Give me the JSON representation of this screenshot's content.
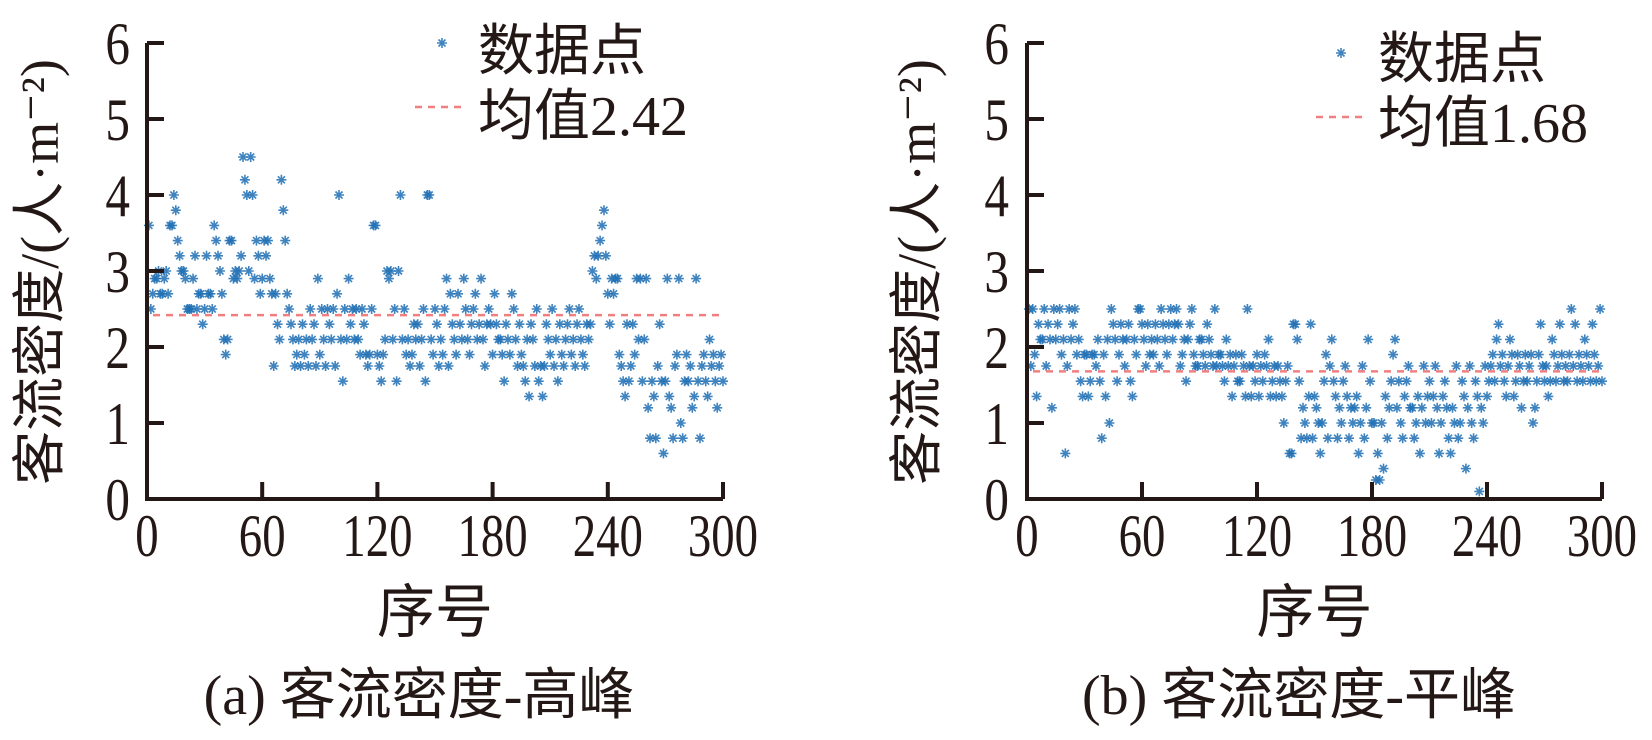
{
  "chart_data": [
    {
      "type": "scatter",
      "caption": "(a) 客流密度-高峰",
      "xlabel": "序号",
      "ylabel": "客流密度/(人·m⁻²)",
      "xlim": [
        0,
        300
      ],
      "ylim": [
        0,
        6
      ],
      "xticks": [
        "0",
        "60",
        "120",
        "180",
        "240",
        "300"
      ],
      "yticks": [
        "0",
        "1",
        "2",
        "3",
        "4",
        "5",
        "6"
      ],
      "legend": {
        "placement": "top-right",
        "points_label": "数据点",
        "mean_label": "均值2.42"
      },
      "mean": 2.42,
      "marker_color": "#1f6fb4",
      "mean_line_color": "#f08080",
      "y_rows": [
        [
          3.6,
          2.5,
          2.7,
          2.9,
          2.9,
          3.0,
          2.7,
          2.7,
          2.9,
          3.0
        ],
        [
          2.7,
          3.6,
          3.6,
          4.0,
          3.8,
          3.4,
          3.2,
          3.0,
          3.0,
          2.9
        ],
        [
          2.5,
          2.5,
          2.5,
          2.9,
          3.2,
          2.5,
          2.7,
          2.7,
          2.3,
          2.5
        ],
        [
          3.2,
          2.7,
          2.7,
          2.5,
          3.6,
          3.4,
          3.2,
          3.0,
          2.7,
          2.1
        ],
        [
          1.9,
          2.1,
          3.4,
          3.4,
          2.9,
          3.0,
          2.9,
          3.0,
          3.2,
          4.5
        ],
        [
          4.2,
          4.0,
          3.0,
          4.5,
          4.0,
          2.9,
          3.4,
          3.2,
          2.7,
          2.9
        ],
        [
          3.4,
          3.2,
          3.4,
          2.9,
          2.7,
          1.75,
          2.7,
          2.3,
          2.1,
          4.2
        ],
        [
          3.8,
          3.4,
          2.7,
          2.5,
          2.3,
          2.1,
          1.75,
          1.9,
          2.1,
          1.75
        ],
        [
          2.3,
          1.9,
          2.1,
          1.75,
          2.5,
          2.1,
          2.3,
          1.75,
          2.9,
          1.9
        ],
        [
          2.5,
          2.1,
          1.75,
          2.5,
          2.3,
          2.1,
          2.5,
          1.75,
          2.7,
          4.0
        ],
        [
          2.1,
          1.55,
          2.5,
          2.1,
          2.9,
          2.3,
          2.5,
          2.1,
          2.5,
          2.1
        ],
        [
          1.9,
          2.5,
          2.3,
          1.9,
          1.75,
          1.9,
          2.5,
          3.6,
          3.6,
          1.9
        ],
        [
          1.75,
          1.55,
          1.9,
          2.1,
          3.0,
          2.9,
          3.0,
          2.1,
          2.5,
          1.55
        ],
        [
          3.0,
          4.0,
          2.1,
          2.5,
          1.9,
          2.1,
          1.75,
          1.9,
          2.3,
          2.1
        ],
        [
          2.3,
          1.75,
          2.1,
          2.5,
          1.55,
          4.0,
          4.0,
          2.1,
          1.9,
          2.5
        ],
        [
          2.3,
          1.75,
          2.1,
          1.9,
          2.5,
          2.9,
          1.75,
          2.7,
          2.3,
          2.1
        ],
        [
          1.9,
          2.7,
          2.3,
          2.1,
          2.9,
          2.5,
          2.1,
          1.9,
          2.3,
          2.5
        ],
        [
          2.7,
          2.1,
          2.3,
          2.9,
          2.1,
          1.75,
          2.3,
          2.5,
          2.3,
          1.9
        ],
        [
          2.7,
          2.3,
          2.1,
          2.1,
          1.9,
          1.55,
          2.3,
          2.1,
          1.9,
          2.7
        ],
        [
          2.5,
          2.1,
          1.75,
          2.3,
          1.9,
          1.75,
          1.55,
          2.1,
          1.35,
          2.3
        ],
        [
          2.1,
          1.75,
          2.5,
          1.55,
          1.75,
          1.35,
          1.75,
          2.3,
          2.1,
          1.9
        ],
        [
          2.5,
          1.75,
          2.1,
          1.55,
          2.3,
          1.9,
          1.75,
          2.1,
          2.3,
          2.5
        ],
        [
          1.9,
          2.1,
          1.75,
          2.3,
          2.5,
          2.1,
          1.9,
          1.75,
          2.3,
          2.1
        ],
        [
          2.3,
          3.0,
          3.2,
          2.9,
          3.2,
          3.4,
          3.6,
          3.8,
          3.2,
          2.7
        ],
        [
          2.3,
          2.9,
          2.7,
          2.9,
          2.9,
          1.9,
          1.75,
          1.55,
          1.35,
          2.3
        ],
        [
          1.55,
          1.75,
          2.3,
          1.9,
          2.9,
          2.1,
          2.9,
          1.55,
          2.1,
          2.9
        ],
        [
          1.2,
          0.8,
          1.55,
          1.35,
          0.8,
          1.75,
          2.3,
          1.55,
          0.6,
          1.55
        ],
        [
          2.9,
          1.35,
          1.2,
          0.8,
          1.75,
          1.9,
          2.9,
          1.0,
          0.8,
          1.55
        ],
        [
          1.9,
          1.55,
          1.75,
          1.2,
          1.35,
          2.9,
          1.55,
          0.8,
          1.75,
          1.9
        ],
        [
          1.55,
          1.35,
          2.1,
          1.75,
          1.9,
          1.55,
          1.2,
          1.75,
          1.9,
          1.55
        ]
      ]
    },
    {
      "type": "scatter",
      "caption": "(b) 客流密度-平峰",
      "xlabel": "序号",
      "ylabel": "客流密度/(人·m⁻²)",
      "xlim": [
        0,
        300
      ],
      "ylim": [
        0,
        6
      ],
      "xticks": [
        "0",
        "60",
        "120",
        "180",
        "240",
        "300"
      ],
      "yticks": [
        "0",
        "1",
        "2",
        "3",
        "4",
        "5",
        "6"
      ],
      "legend": {
        "placement": "top-right",
        "points_label": "数据点",
        "mean_label": "均值1.68"
      },
      "mean": 1.68,
      "marker_color": "#1f6fb4",
      "mean_line_color": "#f08080",
      "y_rows": [
        [
          2.5,
          1.75,
          2.5,
          1.9,
          1.35,
          2.3,
          2.1,
          2.1,
          2.5,
          1.75
        ],
        [
          2.3,
          2.1,
          1.2,
          2.5,
          2.1,
          2.3,
          2.5,
          1.9,
          2.1,
          0.6
        ],
        [
          1.75,
          2.5,
          2.1,
          2.3,
          2.5,
          1.9,
          2.1,
          1.55,
          1.35,
          1.9
        ],
        [
          1.9,
          1.35,
          1.55,
          1.9,
          1.9,
          1.75,
          2.1,
          1.55,
          0.8,
          1.9
        ],
        [
          1.35,
          2.1,
          1.0,
          2.5,
          2.3,
          2.1,
          1.55,
          1.9,
          2.3,
          2.1
        ],
        [
          1.75,
          2.1,
          2.3,
          1.55,
          1.35,
          2.1,
          1.9,
          2.5,
          2.5,
          2.3
        ],
        [
          2.1,
          1.75,
          2.3,
          1.9,
          2.1,
          1.9,
          2.3,
          2.1,
          1.75,
          2.5
        ],
        [
          2.3,
          2.1,
          1.9,
          2.3,
          2.5,
          2.1,
          2.3,
          2.5,
          2.3,
          1.75
        ],
        [
          1.9,
          2.1,
          1.55,
          2.1,
          2.3,
          2.5,
          1.9,
          1.75,
          1.75,
          2.1
        ],
        [
          2.1,
          1.9,
          1.75,
          2.3,
          2.1,
          1.9,
          1.75,
          2.5,
          1.75,
          1.9
        ],
        [
          1.9,
          1.75,
          1.55,
          2.1,
          1.75,
          1.9,
          1.35,
          1.75,
          1.9,
          1.55
        ],
        [
          1.55,
          1.9,
          1.75,
          1.35,
          2.5,
          1.75,
          1.35,
          1.75,
          1.55,
          1.9
        ],
        [
          1.35,
          1.75,
          1.55,
          1.9,
          1.75,
          2.1,
          1.35,
          1.55,
          1.75,
          1.35
        ],
        [
          1.75,
          1.55,
          1.35,
          1.0,
          1.55,
          1.75,
          0.6,
          0.6,
          2.3,
          2.3
        ],
        [
          2.1,
          1.55,
          0.8,
          1.2,
          1.0,
          0.8,
          1.35,
          2.3,
          0.8,
          1.35
        ],
        [
          1.2,
          1.0,
          0.6,
          1.0,
          1.55,
          1.9,
          0.8,
          1.75,
          2.1,
          1.55
        ],
        [
          1.35,
          0.8,
          1.2,
          1.0,
          1.55,
          1.75,
          1.35,
          0.8,
          1.2,
          1.0
        ],
        [
          1.2,
          1.35,
          0.6,
          1.0,
          1.75,
          0.8,
          1.2,
          2.1,
          1.55,
          1.0
        ],
        [
          1.0,
          0.25,
          0.6,
          0.25,
          1.0,
          0.4,
          1.35,
          0.8,
          1.2,
          1.55
        ],
        [
          1.9,
          2.1,
          1.2,
          1.55,
          1.0,
          0.8,
          1.35,
          1.55,
          1.75,
          1.2
        ],
        [
          1.2,
          0.8,
          1.0,
          1.35,
          0.6,
          1.2,
          1.75,
          1.0,
          1.35,
          1.55
        ],
        [
          1.0,
          1.35,
          1.75,
          1.2,
          0.6,
          1.0,
          1.35,
          1.55,
          1.2,
          0.8
        ],
        [
          0.6,
          1.2,
          1.0,
          1.75,
          0.8,
          1.0,
          1.55,
          1.35,
          0.4,
          1.2
        ],
        [
          1.75,
          1.0,
          0.8,
          1.55,
          1.35,
          0.1,
          1.2,
          1.0,
          1.75,
          1.35
        ],
        [
          1.55,
          1.75,
          1.9,
          1.55,
          2.1,
          2.3,
          1.75,
          1.9,
          1.55,
          1.35
        ],
        [
          1.75,
          2.1,
          1.9,
          1.35,
          1.55,
          1.9,
          1.75,
          1.2,
          1.55,
          1.9
        ],
        [
          1.55,
          1.75,
          1.9,
          1.0,
          1.2,
          1.55,
          1.9,
          2.3,
          1.75,
          1.55
        ],
        [
          1.75,
          1.35,
          1.55,
          2.1,
          1.9,
          1.55,
          1.75,
          2.3,
          1.9,
          1.55
        ],
        [
          1.75,
          1.55,
          1.9,
          2.5,
          1.75,
          2.3,
          1.55,
          1.9,
          1.75,
          1.55
        ],
        [
          2.1,
          1.9,
          1.75,
          1.55,
          2.3,
          1.9,
          1.55,
          1.75,
          2.5,
          1.55
        ]
      ]
    }
  ]
}
